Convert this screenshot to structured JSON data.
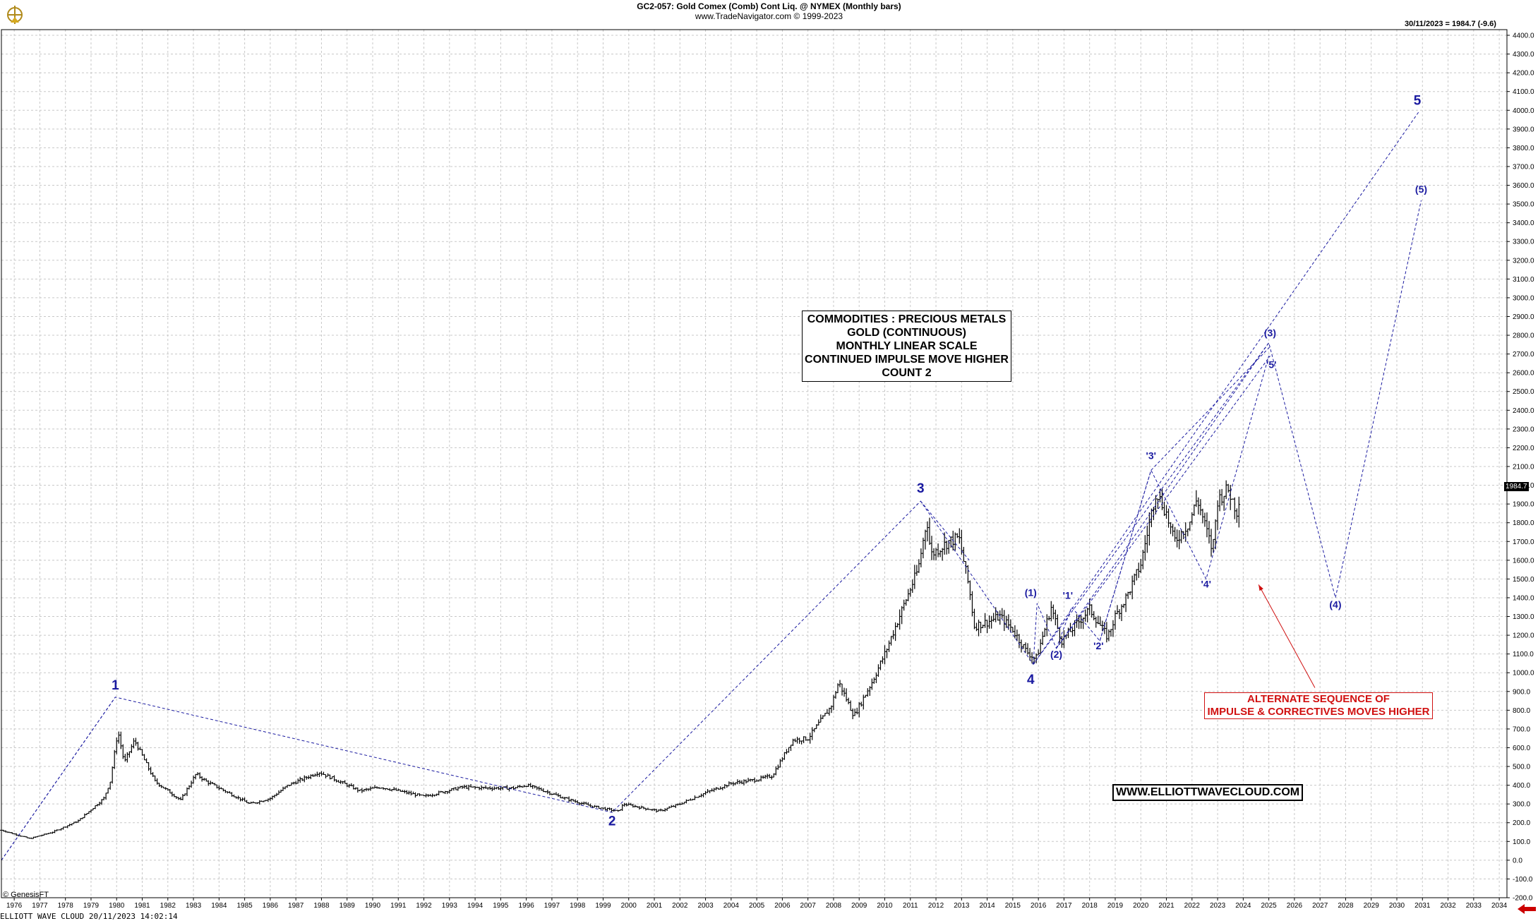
{
  "header": {
    "symbol_line": "GC2-057:  Gold Comex (Comb) Cont Liq. @ NYMEX  (Monthly bars)",
    "source_line": "www.TradeNavigator.com © 1999-2023"
  },
  "last_quote": "30/11/2023 = 1984.7 (-9.6)",
  "price_tag": "1984.7",
  "info_box": {
    "line1": "COMMODITIES : PRECIOUS METALS",
    "line2": "GOLD (CONTINUOUS)",
    "line3": "MONTHLY LINEAR SCALE",
    "line4": "CONTINUED IMPULSE MOVE HIGHER",
    "line5": "COUNT 2"
  },
  "alt_box": {
    "line1": "ALTERNATE SEQUENCE OF",
    "line2": "IMPULSE & CORRECTIVES MOVES HIGHER"
  },
  "website": "WWW.ELLIOTTWAVECLOUD.COM",
  "copyright": "© GenesisFT",
  "footer": "ELLIOTT WAVE CLOUD   20/11/2023 14:02:14",
  "colors": {
    "wave": "#1a1aa0",
    "annotation": "#d01010",
    "bars": "#000000",
    "grid": "#c8c8c8"
  },
  "chart_data": {
    "type": "ohlc",
    "title": "GC2-057:  Gold Comex (Comb) Cont Liq. @ NYMEX  (Monthly bars)",
    "xlabel": "",
    "ylabel": "",
    "xlim": [
      1975.5,
      2034.3
    ],
    "ylim": [
      -200,
      4400
    ],
    "grid": true,
    "x_ticks": [
      1976,
      1977,
      1978,
      1979,
      1980,
      1981,
      1982,
      1983,
      1984,
      1985,
      1986,
      1987,
      1988,
      1989,
      1990,
      1991,
      1992,
      1993,
      1994,
      1995,
      1996,
      1997,
      1998,
      1999,
      2000,
      2001,
      2002,
      2003,
      2004,
      2005,
      2006,
      2007,
      2008,
      2009,
      2010,
      2011,
      2012,
      2013,
      2014,
      2015,
      2016,
      2017,
      2018,
      2019,
      2020,
      2021,
      2022,
      2023,
      2024,
      2025,
      2026,
      2027,
      2028,
      2029,
      2030,
      2031,
      2032,
      2033,
      2034
    ],
    "y_ticks": [
      "-200.0",
      "-100.0",
      "0.0",
      "100.0",
      "200.0",
      "300.0",
      "400.0",
      "500.0",
      "600.0",
      "700.0",
      "800.0",
      "900.0",
      "1000.0",
      "1100.0",
      "1200.0",
      "1300.0",
      "1400.0",
      "1500.0",
      "1600.0",
      "1700.0",
      "1800.0",
      "1900.0",
      "2000.0",
      "2100.0",
      "2200.0",
      "2300.0",
      "2400.0",
      "2500.0",
      "2600.0",
      "2700.0",
      "2800.0",
      "2900.0",
      "3000.0",
      "3100.0",
      "3200.0",
      "3300.0",
      "3400.0",
      "3500.0",
      "3600.0",
      "3700.0",
      "3800.0",
      "3900.0",
      "4000.0",
      "4100.0",
      "4200.0",
      "4300.0",
      "4400.0"
    ],
    "price_anchors": [
      [
        1975.5,
        160
      ],
      [
        1976.6,
        115
      ],
      [
        1977.5,
        150
      ],
      [
        1978.5,
        210
      ],
      [
        1979.5,
        330
      ],
      [
        1979.75,
        420
      ],
      [
        1980.05,
        690
      ],
      [
        1980.3,
        520
      ],
      [
        1980.7,
        640
      ],
      [
        1981.5,
        420
      ],
      [
        1982.5,
        320
      ],
      [
        1983.1,
        460
      ],
      [
        1983.5,
        420
      ],
      [
        1984.5,
        350
      ],
      [
        1985.2,
        300
      ],
      [
        1986.0,
        330
      ],
      [
        1986.7,
        400
      ],
      [
        1987.9,
        470
      ],
      [
        1988.7,
        420
      ],
      [
        1989.5,
        370
      ],
      [
        1990.3,
        390
      ],
      [
        1991.0,
        370
      ],
      [
        1992.0,
        340
      ],
      [
        1993.5,
        390
      ],
      [
        1994.5,
        385
      ],
      [
        1995.5,
        385
      ],
      [
        1996.0,
        400
      ],
      [
        1996.6,
        375
      ],
      [
        1997.5,
        330
      ],
      [
        1998.5,
        290
      ],
      [
        1999.6,
        260
      ],
      [
        1999.8,
        300
      ],
      [
        2000.5,
        280
      ],
      [
        2001.2,
        262
      ],
      [
        2002.0,
        300
      ],
      [
        2003.0,
        360
      ],
      [
        2004.0,
        410
      ],
      [
        2005.0,
        430
      ],
      [
        2005.6,
        450
      ],
      [
        2006.4,
        640
      ],
      [
        2007.0,
        650
      ],
      [
        2007.9,
        820
      ],
      [
        2008.2,
        950
      ],
      [
        2008.8,
        770
      ],
      [
        2009.5,
        950
      ],
      [
        2010.0,
        1100
      ],
      [
        2010.8,
        1380
      ],
      [
        2011.3,
        1550
      ],
      [
        2011.65,
        1820
      ],
      [
        2011.8,
        1630
      ],
      [
        2012.5,
        1700
      ],
      [
        2012.9,
        1720
      ],
      [
        2013.3,
        1450
      ],
      [
        2013.5,
        1250
      ],
      [
        2014.0,
        1270
      ],
      [
        2014.5,
        1300
      ],
      [
        2015.0,
        1230
      ],
      [
        2015.5,
        1120
      ],
      [
        2015.9,
        1070
      ],
      [
        2016.5,
        1350
      ],
      [
        2016.9,
        1170
      ],
      [
        2017.5,
        1260
      ],
      [
        2018.0,
        1340
      ],
      [
        2018.7,
        1190
      ],
      [
        2019.0,
        1300
      ],
      [
        2019.5,
        1420
      ],
      [
        2020.0,
        1580
      ],
      [
        2020.6,
        1970
      ],
      [
        2021.0,
        1850
      ],
      [
        2021.3,
        1700
      ],
      [
        2021.9,
        1800
      ],
      [
        2022.2,
        1930
      ],
      [
        2022.8,
        1650
      ],
      [
        2023.0,
        1920
      ],
      [
        2023.4,
        1980
      ],
      [
        2023.75,
        1860
      ],
      [
        2023.9,
        1984.7
      ]
    ],
    "wave_labels": [
      {
        "text": "1",
        "x": 1979.95,
        "y": 910
      },
      {
        "text": "2",
        "x": 1999.35,
        "y": 185
      },
      {
        "text": "3",
        "x": 2011.4,
        "y": 1960
      },
      {
        "text": "4",
        "x": 2015.7,
        "y": 940
      },
      {
        "text": "5",
        "x": 2030.8,
        "y": 4030
      },
      {
        "text": "(1)",
        "x": 2015.7,
        "y": 1410
      },
      {
        "text": "(2)",
        "x": 2016.7,
        "y": 1080
      },
      {
        "text": "(3)",
        "x": 2025.05,
        "y": 2795
      },
      {
        "text": "(4)",
        "x": 2027.6,
        "y": 1345
      },
      {
        "text": "(5)",
        "x": 2030.95,
        "y": 3560
      },
      {
        "text": "'1'",
        "x": 2017.15,
        "y": 1395
      },
      {
        "text": "'2'",
        "x": 2018.35,
        "y": 1125
      },
      {
        "text": "'3'",
        "x": 2020.4,
        "y": 2140
      },
      {
        "text": "'4'",
        "x": 2022.55,
        "y": 1455
      },
      {
        "text": "'5'",
        "x": 2025.1,
        "y": 2625
      }
    ],
    "wave_lines": [
      [
        [
          1975.5,
          0
        ],
        [
          1979.95,
          870
        ],
        [
          1999.35,
          255
        ],
        [
          2011.4,
          1915
        ],
        [
          2015.8,
          1045
        ],
        [
          2030.85,
          3990
        ]
      ],
      [
        [
          1975.5,
          0
        ],
        [
          1979.95,
          870
        ]
      ],
      [
        [
          2015.8,
          1045
        ],
        [
          2015.95,
          1370
        ],
        [
          2016.7,
          1130
        ],
        [
          2025.0,
          2760
        ],
        [
          2027.6,
          1400
        ],
        [
          2030.95,
          3520
        ]
      ],
      [
        [
          2016.7,
          1130
        ],
        [
          2017.3,
          1350
        ],
        [
          2018.4,
          1170
        ],
        [
          2020.4,
          2080
        ],
        [
          2022.55,
          1500
        ],
        [
          2025.0,
          2690
        ]
      ],
      [
        [
          2011.4,
          1915
        ],
        [
          2013.3,
          1600
        ]
      ],
      [
        [
          2015.8,
          1045
        ],
        [
          2025.0,
          2760
        ]
      ],
      [
        [
          2016.7,
          1130
        ],
        [
          2025.05,
          2690
        ]
      ],
      [
        [
          2018.4,
          1170
        ],
        [
          2020.4,
          2080
        ]
      ],
      [
        [
          2020.4,
          2080
        ],
        [
          2025.05,
          2740
        ]
      ]
    ],
    "annotation_arrow": {
      "from": [
        2026.8,
        920
      ],
      "to": [
        2024.6,
        1470
      ]
    }
  }
}
